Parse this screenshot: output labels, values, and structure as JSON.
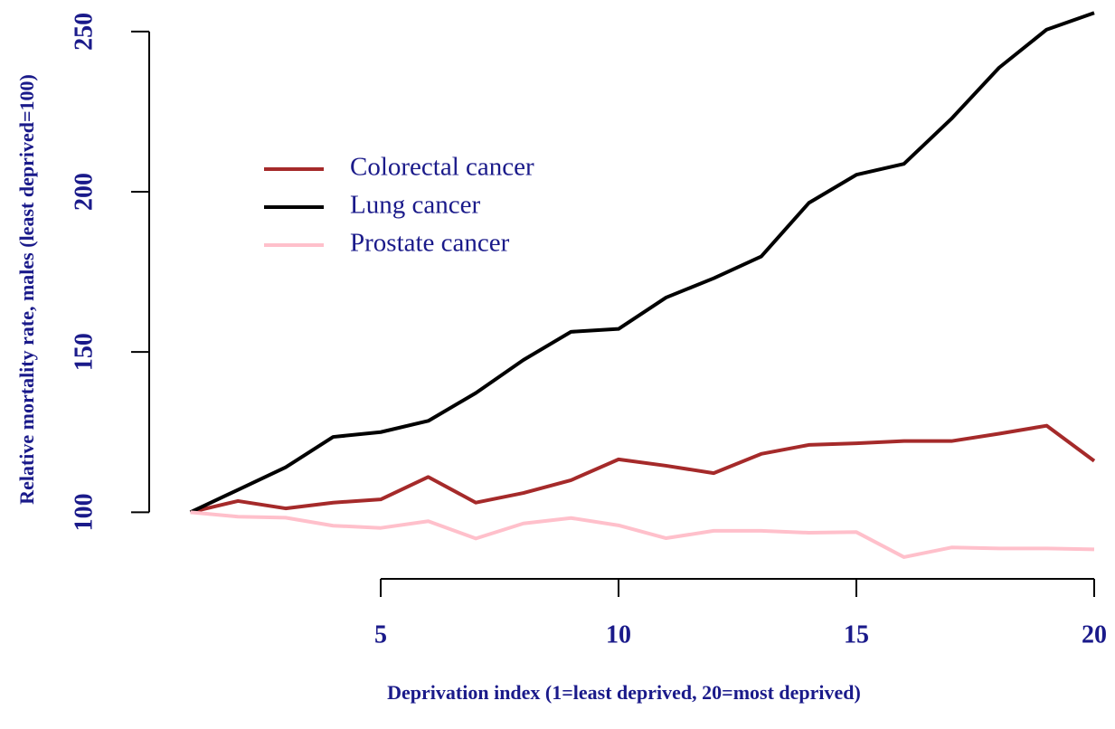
{
  "chart_data": {
    "type": "line",
    "x_label": "Deprivation index (1=least deprived, 20=most deprived)",
    "y_label": "Relative mortality rate, males (least deprived=100)",
    "x": [
      1,
      2,
      3,
      4,
      5,
      6,
      7,
      8,
      9,
      10,
      11,
      12,
      13,
      14,
      15,
      16,
      17,
      18,
      19,
      20
    ],
    "series": [
      {
        "name": "Colorectal cancer",
        "color": "#a52a2a",
        "values": [
          100,
          103.5,
          101.2,
          103,
          104,
          111,
          103,
          106,
          110,
          116.5,
          114.5,
          112.2,
          118.2,
          121,
          121.5,
          122.2,
          122.2,
          124.5,
          127,
          116
        ]
      },
      {
        "name": "Lung cancer",
        "color": "#000000",
        "values": [
          100,
          107,
          114,
          123.5,
          125,
          128.5,
          137.2,
          147.5,
          156.3,
          157.2,
          167,
          173,
          179.8,
          196.5,
          205.3,
          208.7,
          222.8,
          238.7,
          250.6,
          255.8
        ]
      },
      {
        "name": "Prostate cancer",
        "color": "#ffc0cb",
        "values": [
          100,
          98.6,
          98.3,
          95.8,
          95.1,
          97.2,
          91.8,
          96.5,
          98.2,
          95.9,
          91.9,
          94.2,
          94.2,
          93.6,
          93.8,
          86,
          89,
          88.7,
          88.7,
          88.4
        ]
      }
    ],
    "xlim": [
      1,
      20
    ],
    "ylim": [
      80,
      260
    ],
    "xticks": [
      5,
      10,
      15,
      20
    ],
    "yticks": [
      100,
      150,
      200,
      250
    ]
  }
}
